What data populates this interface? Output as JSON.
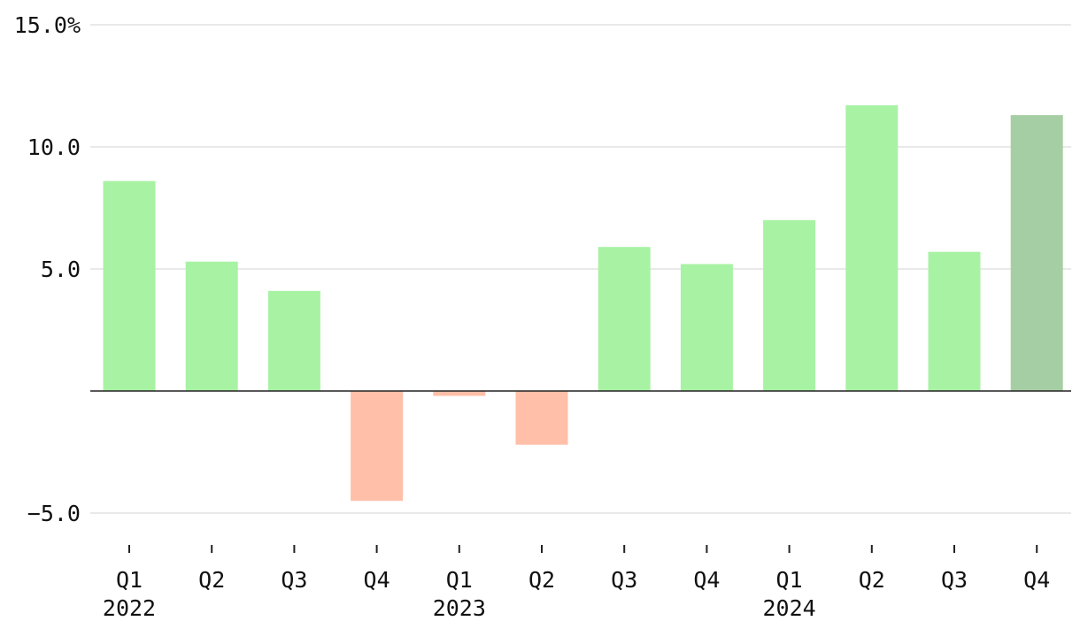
{
  "chart_data": {
    "type": "bar",
    "title": "",
    "xlabel": "",
    "ylabel": "",
    "ylim": [
      -6.0,
      15.0
    ],
    "y_ticks": [
      {
        "value": 15.0,
        "label": "15.0%"
      },
      {
        "value": 10.0,
        "label": "10.0"
      },
      {
        "value": 5.0,
        "label": "5.0"
      },
      {
        "value": -5.0,
        "label": "−5.0"
      }
    ],
    "grid": true,
    "legend": "none",
    "categories": [
      "Q1",
      "Q2",
      "Q3",
      "Q4",
      "Q1",
      "Q2",
      "Q3",
      "Q4",
      "Q1",
      "Q2",
      "Q3",
      "Q4"
    ],
    "year_labels": [
      {
        "index": 0,
        "label": "2022"
      },
      {
        "index": 4,
        "label": "2023"
      },
      {
        "index": 8,
        "label": "2024"
      }
    ],
    "values": [
      8.6,
      5.3,
      4.1,
      -4.5,
      -0.2,
      -2.2,
      5.9,
      5.2,
      7.0,
      11.7,
      5.7,
      11.3
    ],
    "colors": {
      "positive": "#a8f2a4",
      "negative": "#ffbfa8",
      "highlight": "#a6cea4",
      "highlight_index": 11
    }
  }
}
